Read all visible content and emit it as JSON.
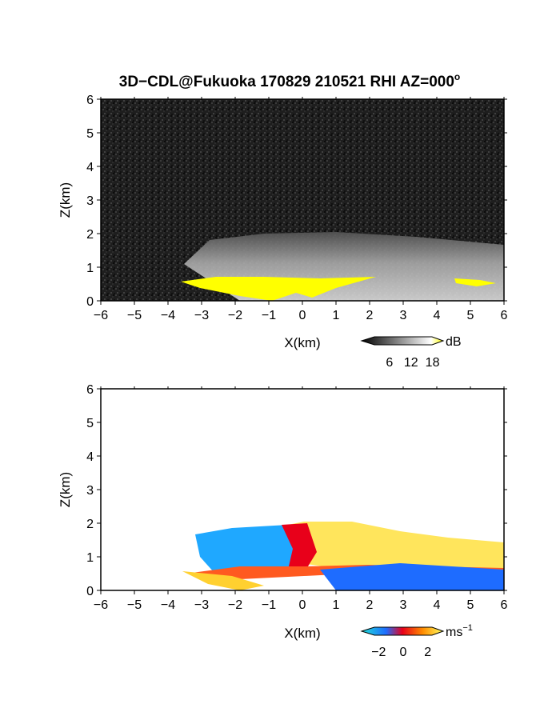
{
  "title": "3D−CDL@Fukuoka 170829 210521 RHI AZ=000",
  "title_superscript": "o",
  "colors": {
    "background": "#ffffff",
    "panel_dark": "#1c1c1c",
    "reflectivity_high": "#ffff00",
    "velocity_negative": "#1fa8ff",
    "velocity_zero": "#e8001a",
    "velocity_positive": "#ffee40"
  },
  "chart_data": [
    {
      "type": "heatmap",
      "name": "reflectivity",
      "xlabel": "X(km)",
      "ylabel": "Z(km)",
      "xlim": [
        -6,
        6
      ],
      "ylim": [
        0,
        6
      ],
      "x_ticks": [
        "−6",
        "−5",
        "−4",
        "−3",
        "−2",
        "−1",
        "0",
        "1",
        "2",
        "3",
        "4",
        "5",
        "6"
      ],
      "y_ticks": [
        "0",
        "1",
        "2",
        "3",
        "4",
        "5",
        "6"
      ],
      "colorbar": {
        "unit": "dB",
        "ticks": [
          "6",
          "12",
          "18"
        ],
        "range": [
          0,
          21
        ],
        "colormap": "grayscale-yellow"
      },
      "features": [
        {
          "label": "noise background",
          "level_db": 1
        },
        {
          "label": "boundary-layer layer",
          "x": [
            -3,
            6
          ],
          "z": [
            0.3,
            2.0
          ],
          "level_db": 12
        },
        {
          "label": "strong echo layer",
          "x": [
            -3.4,
            5.6
          ],
          "z": [
            0.1,
            0.7
          ],
          "level_db": 20
        }
      ]
    },
    {
      "type": "heatmap",
      "name": "doppler_velocity",
      "xlabel": "X(km)",
      "ylabel": "Z(km)",
      "xlim": [
        -6,
        6
      ],
      "ylim": [
        0,
        6
      ],
      "x_ticks": [
        "−6",
        "−5",
        "−4",
        "−3",
        "−2",
        "−1",
        "0",
        "1",
        "2",
        "3",
        "4",
        "5",
        "6"
      ],
      "y_ticks": [
        "0",
        "1",
        "2",
        "3",
        "4",
        "5",
        "6"
      ],
      "colorbar": {
        "unit": "ms",
        "unit_exponent": "−1",
        "ticks": [
          "−2",
          "0",
          "2"
        ],
        "range": [
          -3,
          3
        ],
        "colormap": "blue-red-yellow"
      },
      "features": [
        {
          "label": "negative velocity region",
          "x": [
            -3,
            0
          ],
          "z": [
            0.9,
            1.8
          ],
          "value": -2
        },
        {
          "label": "positive velocity region",
          "x": [
            0,
            6
          ],
          "z": [
            0.8,
            2.0
          ],
          "value": 2
        },
        {
          "label": "near-zero shear band",
          "x": [
            -3,
            6
          ],
          "z": [
            0.4,
            0.9
          ],
          "value": 0
        },
        {
          "label": "low-level negative jet",
          "x": [
            1,
            6
          ],
          "z": [
            0.0,
            0.6
          ],
          "value": -2
        }
      ]
    }
  ]
}
